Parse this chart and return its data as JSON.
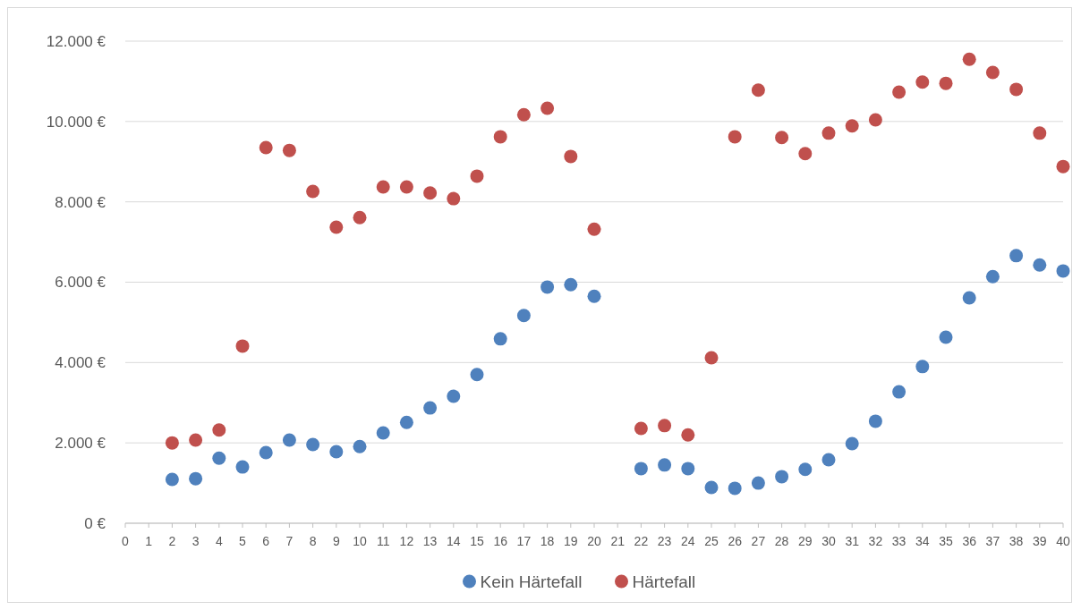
{
  "chart_data": {
    "type": "scatter",
    "x": [
      2,
      3,
      4,
      5,
      6,
      7,
      8,
      9,
      10,
      11,
      12,
      13,
      14,
      15,
      16,
      17,
      18,
      19,
      20,
      22,
      23,
      24,
      25,
      26,
      27,
      28,
      29,
      30,
      31,
      32,
      33,
      34,
      35,
      36,
      37,
      38,
      39,
      40
    ],
    "series": [
      {
        "name": "Kein Härtefall",
        "color": "#4f81bd",
        "values": [
          1090,
          1110,
          1620,
          1400,
          1760,
          2070,
          1960,
          1780,
          1910,
          2250,
          2510,
          2870,
          3160,
          3700,
          4590,
          5170,
          5880,
          5940,
          5650,
          1360,
          1450,
          1360,
          890,
          870,
          1000,
          1160,
          1340,
          1580,
          1980,
          2540,
          3270,
          3900,
          4630,
          5610,
          6140,
          6660,
          6430,
          6280
        ]
      },
      {
        "name": "Härtefall",
        "color": "#c0504d",
        "values": [
          2000,
          2070,
          2320,
          4410,
          9350,
          9280,
          8260,
          7370,
          7610,
          8370,
          8370,
          8220,
          8080,
          8640,
          9620,
          10170,
          10330,
          9130,
          7320,
          2360,
          2430,
          2200,
          4120,
          9620,
          10780,
          9600,
          9200,
          9710,
          9890,
          10040,
          10730,
          10980,
          10950,
          11550,
          11220,
          10800,
          9710,
          8880
        ]
      }
    ],
    "xlim": [
      0,
      40
    ],
    "xticks": [
      0,
      1,
      2,
      3,
      4,
      5,
      6,
      7,
      8,
      9,
      10,
      11,
      12,
      13,
      14,
      15,
      16,
      17,
      18,
      19,
      20,
      21,
      22,
      23,
      24,
      25,
      26,
      27,
      28,
      29,
      30,
      31,
      32,
      33,
      34,
      35,
      36,
      37,
      38,
      39,
      40
    ],
    "ylim": [
      0,
      12000
    ],
    "yticks": [
      {
        "value": 0,
        "label": "0 €"
      },
      {
        "value": 2000,
        "label": "2.000 €"
      },
      {
        "value": 4000,
        "label": "4.000 €"
      },
      {
        "value": 6000,
        "label": "6.000 €"
      },
      {
        "value": 8000,
        "label": "8.000 €"
      },
      {
        "value": 10000,
        "label": "10.000 €"
      },
      {
        "value": 12000,
        "label": "12.000 €"
      }
    ],
    "grid": "y",
    "legend": "bottom",
    "marker": "circle"
  }
}
